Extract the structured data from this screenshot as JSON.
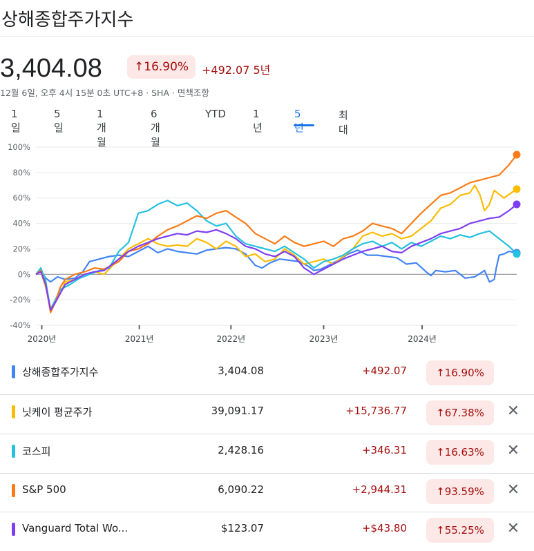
{
  "header": {
    "title": "상해종합주가지수",
    "price": "3,404.08",
    "pct_change": "16.90%",
    "abs_change": "+492.07",
    "period": "5년",
    "meta": "12월 6일, 오후 4시 15분 0초 UTC+8 · SHA · 면책조항",
    "up_arrow": "↑"
  },
  "ranges": [
    "1일",
    "5일",
    "1개월",
    "6개월",
    "YTD",
    "1년",
    "5년",
    "최대"
  ],
  "active_range": "5년",
  "colors": {
    "blue": "#4285f4",
    "yellow": "#fbbc04",
    "cyan": "#24c1e0",
    "orange": "#fa7b17",
    "purple": "#7e3ff2",
    "red_text": "#a50e0e",
    "badge_bg": "#fce8e6"
  },
  "chart_data": {
    "type": "line",
    "yaxis_ticks": [
      "100%",
      "80%",
      "60%",
      "40%",
      "20%",
      "0%",
      "-20%",
      "-40%"
    ],
    "ylim": [
      -40,
      100
    ],
    "x_ticks": [
      "2020년",
      "2021년",
      "2022년",
      "2023년",
      "2024년"
    ],
    "xlim": [
      2020.0,
      2024.93
    ],
    "series": [
      {
        "name": "상해종합주가지수",
        "color": "#4285f4",
        "x": [
          2020.0,
          2020.05,
          2020.1,
          2020.15,
          2020.22,
          2020.3,
          2020.4,
          2020.48,
          2020.55,
          2020.65,
          2020.75,
          2020.85,
          2020.95,
          2021.05,
          2021.15,
          2021.25,
          2021.35,
          2021.45,
          2021.55,
          2021.65,
          2021.75,
          2021.85,
          2021.95,
          2022.05,
          2022.15,
          2022.25,
          2022.32,
          2022.4,
          2022.5,
          2022.6,
          2022.7,
          2022.8,
          2022.85,
          2022.92,
          2023.0,
          2023.1,
          2023.2,
          2023.3,
          2023.4,
          2023.5,
          2023.6,
          2023.7,
          2023.8,
          2023.9,
          2024.0,
          2024.05,
          2024.1,
          2024.2,
          2024.3,
          2024.4,
          2024.5,
          2024.6,
          2024.65,
          2024.7,
          2024.72,
          2024.75,
          2024.8,
          2024.85,
          2024.93
        ],
        "y": [
          0,
          3,
          -3,
          -6,
          -2,
          -4,
          -3,
          2,
          10,
          12,
          14,
          15,
          14,
          18,
          22,
          17,
          20,
          18,
          17,
          16,
          19,
          20,
          21,
          20,
          16,
          7,
          5,
          9,
          12,
          11,
          10,
          6,
          3,
          4,
          7,
          11,
          16,
          19,
          15,
          15,
          14,
          13,
          8,
          9,
          2,
          -1,
          3,
          2,
          3,
          -3,
          -2,
          3,
          -6,
          -4,
          5,
          15,
          16,
          18,
          17
        ]
      },
      {
        "name": "닛케이 평균주가",
        "color": "#fbbc04",
        "x": [
          2020.0,
          2020.05,
          2020.1,
          2020.15,
          2020.2,
          2020.25,
          2020.3,
          2020.4,
          2020.5,
          2020.6,
          2020.7,
          2020.85,
          2020.95,
          2021.05,
          2021.15,
          2021.25,
          2021.35,
          2021.45,
          2021.55,
          2021.65,
          2021.75,
          2021.85,
          2021.95,
          2022.05,
          2022.15,
          2022.25,
          2022.35,
          2022.45,
          2022.55,
          2022.65,
          2022.75,
          2022.85,
          2022.95,
          2023.05,
          2023.15,
          2023.25,
          2023.35,
          2023.45,
          2023.55,
          2023.65,
          2023.75,
          2023.85,
          2023.95,
          2024.05,
          2024.15,
          2024.25,
          2024.35,
          2024.45,
          2024.5,
          2024.55,
          2024.6,
          2024.65,
          2024.7,
          2024.8,
          2024.93
        ],
        "y": [
          0,
          2,
          -10,
          -27,
          -20,
          -15,
          -6,
          -4,
          0,
          2,
          0,
          12,
          20,
          24,
          28,
          24,
          22,
          23,
          22,
          28,
          25,
          20,
          26,
          22,
          14,
          16,
          10,
          12,
          20,
          15,
          8,
          10,
          12,
          8,
          14,
          20,
          30,
          33,
          30,
          32,
          28,
          30,
          36,
          42,
          52,
          55,
          62,
          64,
          70,
          63,
          50,
          55,
          66,
          60,
          67
        ]
      },
      {
        "name": "코스피",
        "color": "#24c1e0",
        "x": [
          2020.0,
          2020.05,
          2020.1,
          2020.15,
          2020.2,
          2020.25,
          2020.35,
          2020.45,
          2020.55,
          2020.65,
          2020.75,
          2020.85,
          2020.95,
          2021.05,
          2021.15,
          2021.25,
          2021.35,
          2021.45,
          2021.55,
          2021.65,
          2021.75,
          2021.85,
          2021.95,
          2022.05,
          2022.15,
          2022.25,
          2022.35,
          2022.45,
          2022.55,
          2022.65,
          2022.75,
          2022.85,
          2022.95,
          2023.05,
          2023.15,
          2023.25,
          2023.35,
          2023.45,
          2023.55,
          2023.65,
          2023.75,
          2023.85,
          2023.95,
          2024.05,
          2024.15,
          2024.25,
          2024.35,
          2024.45,
          2024.55,
          2024.65,
          2024.75,
          2024.85,
          2024.93
        ],
        "y": [
          0,
          5,
          -5,
          -28,
          -20,
          -12,
          -8,
          -3,
          0,
          3,
          5,
          18,
          25,
          48,
          50,
          55,
          58,
          54,
          56,
          50,
          42,
          38,
          40,
          30,
          24,
          22,
          20,
          18,
          22,
          17,
          12,
          5,
          10,
          12,
          15,
          20,
          24,
          26,
          22,
          25,
          20,
          25,
          22,
          26,
          30,
          28,
          31,
          29,
          32,
          34,
          28,
          22,
          16
        ]
      },
      {
        "name": "S&P 500",
        "color": "#fa7b17",
        "x": [
          2020.0,
          2020.05,
          2020.1,
          2020.15,
          2020.2,
          2020.25,
          2020.3,
          2020.4,
          2020.5,
          2020.6,
          2020.7,
          2020.85,
          2020.95,
          2021.05,
          2021.15,
          2021.25,
          2021.35,
          2021.45,
          2021.55,
          2021.65,
          2021.75,
          2021.85,
          2021.95,
          2022.05,
          2022.15,
          2022.25,
          2022.35,
          2022.45,
          2022.55,
          2022.65,
          2022.75,
          2022.85,
          2022.95,
          2023.05,
          2023.15,
          2023.25,
          2023.35,
          2023.45,
          2023.55,
          2023.65,
          2023.75,
          2023.85,
          2023.95,
          2024.05,
          2024.15,
          2024.25,
          2024.35,
          2024.45,
          2024.55,
          2024.65,
          2024.75,
          2024.85,
          2024.93
        ],
        "y": [
          0,
          3,
          -8,
          -30,
          -22,
          -10,
          -4,
          0,
          2,
          5,
          4,
          10,
          18,
          20,
          24,
          30,
          35,
          38,
          42,
          46,
          44,
          48,
          50,
          45,
          40,
          32,
          28,
          24,
          30,
          25,
          22,
          24,
          26,
          22,
          28,
          30,
          34,
          40,
          38,
          36,
          32,
          40,
          48,
          55,
          62,
          64,
          68,
          72,
          74,
          76,
          78,
          86,
          94
        ]
      },
      {
        "name": "Vanguard Total Wo...",
        "color": "#7e3ff2",
        "x": [
          2020.0,
          2020.05,
          2020.1,
          2020.15,
          2020.2,
          2020.25,
          2020.3,
          2020.4,
          2020.5,
          2020.6,
          2020.7,
          2020.85,
          2020.95,
          2021.05,
          2021.15,
          2021.25,
          2021.35,
          2021.45,
          2021.55,
          2021.65,
          2021.75,
          2021.85,
          2021.95,
          2022.05,
          2022.15,
          2022.25,
          2022.35,
          2022.45,
          2022.55,
          2022.65,
          2022.75,
          2022.85,
          2022.95,
          2023.05,
          2023.15,
          2023.25,
          2023.35,
          2023.45,
          2023.55,
          2023.65,
          2023.75,
          2023.85,
          2023.95,
          2024.05,
          2024.15,
          2024.25,
          2024.35,
          2024.45,
          2024.55,
          2024.65,
          2024.75,
          2024.85,
          2024.93
        ],
        "y": [
          0,
          2,
          -8,
          -28,
          -22,
          -15,
          -8,
          -4,
          0,
          2,
          3,
          12,
          18,
          22,
          25,
          28,
          30,
          32,
          31,
          34,
          33,
          35,
          32,
          28,
          22,
          20,
          16,
          14,
          18,
          14,
          5,
          0,
          4,
          8,
          12,
          15,
          18,
          20,
          22,
          18,
          17,
          22,
          25,
          28,
          32,
          34,
          36,
          40,
          42,
          44,
          45,
          50,
          55
        ]
      }
    ]
  },
  "rows": [
    {
      "name": "상해종합주가지수",
      "price": "3,404.08",
      "change": "+492.07",
      "pct": "16.90%",
      "close": "",
      "color": "#4285f4"
    },
    {
      "name": "닛케이 평균주가",
      "price": "39,091.17",
      "change": "+15,736.77",
      "pct": "67.38%",
      "close": "✕",
      "color": "#fbbc04"
    },
    {
      "name": "코스피",
      "price": "2,428.16",
      "change": "+346.31",
      "pct": "16.63%",
      "close": "✕",
      "color": "#24c1e0"
    },
    {
      "name": "S&P 500",
      "price": "6,090.22",
      "change": "+2,944.31",
      "pct": "93.59%",
      "close": "✕",
      "color": "#fa7b17"
    },
    {
      "name": "Vanguard Total Wo...",
      "price": "$123.07",
      "change": "+$43.80",
      "pct": "55.25%",
      "close": "✕",
      "color": "#7e3ff2"
    }
  ]
}
